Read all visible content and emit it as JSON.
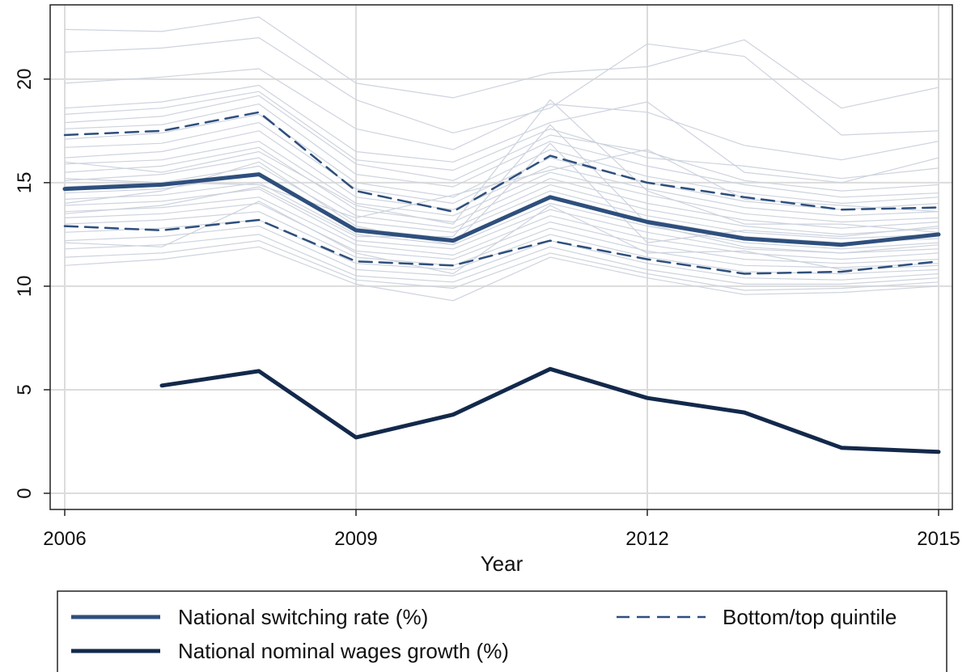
{
  "chart_data": {
    "type": "line",
    "xlabel": "Year",
    "ylabel": "",
    "xlim": [
      2006,
      2015
    ],
    "ylim": [
      0,
      23
    ],
    "x_ticks": [
      2006,
      2009,
      2012,
      2015
    ],
    "y_ticks": [
      0,
      5,
      10,
      15,
      20
    ],
    "grid": true,
    "legend_position": "bottom",
    "x": [
      2006,
      2007,
      2008,
      2009,
      2010,
      2011,
      2012,
      2013,
      2014,
      2015
    ],
    "series": [
      {
        "name": "National switching rate (%)",
        "color": "#2e4f7d",
        "style": "solid-thick",
        "values": [
          14.7,
          14.9,
          15.4,
          12.7,
          12.2,
          14.3,
          13.1,
          12.3,
          12.0,
          12.5
        ]
      },
      {
        "name": "Bottom/top quintile",
        "color": "#2e4f7d",
        "style": "dashed",
        "values": [
          17.3,
          17.5,
          18.4,
          14.6,
          13.6,
          16.3,
          15.0,
          14.3,
          13.7,
          13.8
        ]
      },
      {
        "name": "",
        "color": "#2e4f7d",
        "style": "dashed",
        "values": [
          12.9,
          12.7,
          13.2,
          11.2,
          11.0,
          12.2,
          11.3,
          10.6,
          10.7,
          11.2
        ]
      },
      {
        "name": "National nominal wages growth (%)",
        "color": "#13294b",
        "style": "solid-thick",
        "values": [
          null,
          5.2,
          5.9,
          2.7,
          3.8,
          6.0,
          4.6,
          3.9,
          2.2,
          2.0
        ]
      }
    ],
    "background_series_color": "#cdd3de",
    "background_series": [
      [
        22.4,
        22.3,
        23.0,
        19.8,
        19.1,
        20.3,
        20.6,
        21.9,
        18.6,
        19.6
      ],
      [
        21.3,
        21.5,
        22.0,
        19.0,
        17.4,
        18.6,
        21.7,
        21.1,
        17.3,
        17.5
      ],
      [
        19.8,
        20.1,
        20.5,
        17.6,
        16.6,
        18.8,
        18.4,
        16.8,
        16.1,
        17.0
      ],
      [
        18.6,
        18.9,
        19.7,
        16.5,
        16.0,
        17.9,
        18.9,
        15.5,
        15.0,
        16.2
      ],
      [
        18.3,
        18.6,
        19.4,
        16.1,
        15.6,
        17.6,
        16.2,
        15.8,
        15.2,
        15.7
      ],
      [
        17.9,
        18.2,
        19.2,
        15.9,
        15.1,
        17.3,
        16.5,
        15.1,
        14.6,
        14.9
      ],
      [
        17.6,
        17.8,
        18.8,
        15.4,
        14.8,
        17.0,
        15.8,
        14.9,
        14.3,
        14.5
      ],
      [
        17.1,
        17.4,
        18.3,
        15.0,
        14.3,
        16.6,
        15.3,
        14.5,
        14.0,
        14.3
      ],
      [
        16.7,
        16.9,
        17.9,
        14.7,
        14.0,
        16.2,
        15.0,
        14.1,
        13.7,
        14.0
      ],
      [
        16.2,
        16.5,
        17.5,
        14.3,
        13.7,
        15.8,
        14.7,
        13.8,
        13.4,
        13.6
      ],
      [
        15.9,
        16.1,
        17.0,
        14.0,
        13.4,
        15.5,
        14.4,
        13.5,
        13.1,
        13.3
      ],
      [
        15.5,
        15.8,
        16.7,
        13.7,
        13.1,
        15.2,
        14.0,
        13.2,
        12.8,
        13.1
      ],
      [
        15.1,
        15.4,
        16.2,
        13.4,
        12.8,
        14.9,
        13.7,
        12.9,
        12.5,
        12.8
      ],
      [
        14.8,
        15.0,
        15.8,
        13.1,
        12.6,
        14.6,
        13.4,
        12.6,
        12.3,
        12.5
      ],
      [
        14.5,
        14.7,
        15.4,
        12.8,
        12.3,
        14.3,
        13.2,
        12.4,
        12.1,
        12.3
      ],
      [
        14.2,
        14.4,
        15.0,
        12.5,
        12.0,
        14.0,
        12.9,
        12.1,
        11.8,
        12.1
      ],
      [
        13.9,
        14.1,
        14.7,
        12.2,
        11.8,
        13.7,
        12.6,
        11.8,
        11.6,
        11.8
      ],
      [
        13.6,
        13.8,
        14.3,
        12.0,
        11.5,
        13.4,
        12.3,
        11.6,
        11.3,
        11.6
      ],
      [
        13.3,
        13.5,
        14.0,
        11.7,
        11.3,
        13.1,
        12.0,
        11.3,
        11.1,
        11.3
      ],
      [
        13.0,
        13.2,
        13.6,
        11.4,
        11.0,
        12.8,
        11.7,
        11.0,
        10.9,
        11.1
      ],
      [
        12.6,
        12.8,
        13.2,
        11.1,
        10.8,
        12.5,
        11.4,
        10.7,
        10.6,
        10.8
      ],
      [
        12.2,
        12.4,
        12.9,
        10.8,
        10.5,
        12.2,
        11.1,
        10.4,
        10.3,
        10.6
      ],
      [
        11.8,
        12.0,
        12.5,
        10.5,
        10.2,
        11.9,
        10.8,
        10.1,
        10.1,
        10.4
      ],
      [
        11.4,
        11.6,
        12.2,
        10.3,
        9.9,
        11.6,
        10.6,
        9.8,
        9.9,
        10.2
      ],
      [
        11.0,
        11.3,
        11.9,
        10.1,
        9.3,
        11.4,
        10.4,
        9.6,
        9.7,
        10.0
      ],
      [
        16.0,
        15.5,
        16.5,
        13.9,
        13.0,
        19.0,
        14.6,
        13.0,
        13.0,
        12.6
      ],
      [
        13.5,
        13.9,
        14.8,
        12.4,
        12.4,
        17.8,
        13.0,
        11.9,
        11.6,
        12.0
      ],
      [
        12.1,
        11.9,
        14.1,
        11.6,
        10.6,
        13.9,
        11.6,
        11.7,
        10.8,
        11.0
      ],
      [
        15.2,
        15.0,
        14.9,
        13.3,
        14.4,
        15.6,
        16.6,
        14.2,
        13.9,
        13.6
      ],
      [
        14.0,
        14.6,
        16.0,
        12.9,
        12.0,
        16.9,
        12.1,
        12.7,
        12.4,
        12.9
      ]
    ]
  }
}
